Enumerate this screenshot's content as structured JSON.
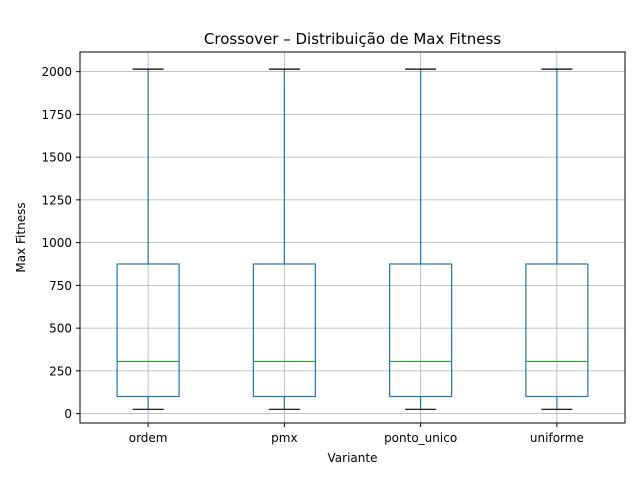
{
  "chart_data": {
    "type": "boxplot",
    "title": "Crossover – Distribuição de Max Fitness",
    "xlabel": "Variante",
    "ylabel": "Max Fitness",
    "ylim": [
      -55,
      2115
    ],
    "yticks": [
      0,
      250,
      500,
      750,
      1000,
      1250,
      1500,
      1750,
      2000
    ],
    "grid": true,
    "categories": [
      "ordem",
      "pmx",
      "ponto_unico",
      "uniforme"
    ],
    "boxes": [
      {
        "name": "ordem",
        "whisker_low": 25,
        "q1": 100,
        "median": 305,
        "q3": 875,
        "whisker_high": 2015
      },
      {
        "name": "pmx",
        "whisker_low": 25,
        "q1": 100,
        "median": 305,
        "q3": 875,
        "whisker_high": 2015
      },
      {
        "name": "ponto_unico",
        "whisker_low": 25,
        "q1": 100,
        "median": 305,
        "q3": 875,
        "whisker_high": 2015
      },
      {
        "name": "uniforme",
        "whisker_low": 25,
        "q1": 100,
        "median": 305,
        "q3": 875,
        "whisker_high": 2015
      }
    ],
    "colors": {
      "box": "#1f77b4",
      "median": "#2ca02c",
      "cap": "#000000",
      "grid": "#b0b0b0"
    }
  }
}
